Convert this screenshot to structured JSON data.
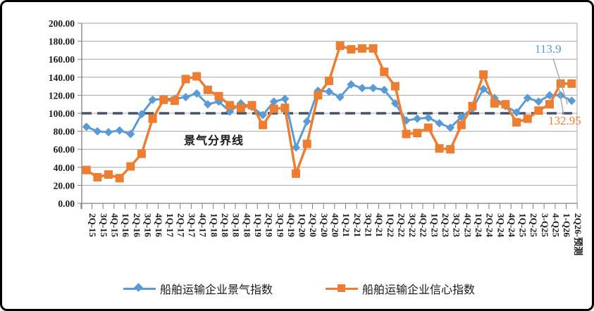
{
  "chart_data": {
    "type": "line",
    "title": "",
    "xlabel": "",
    "ylabel": "",
    "categories": [
      "2Q-15",
      "3Q-15",
      "4Q-15",
      "1Q-16",
      "2Q-16",
      "3Q-16",
      "4Q-16",
      "1Q-17",
      "2Q-17",
      "3Q-17",
      "4Q-17",
      "1Q-18",
      "2Q-18",
      "3Q-18",
      "4Q-18",
      "1Q-19",
      "2Q-19",
      "3Q-19",
      "4Q-19",
      "1Q-20",
      "2Q-20",
      "3Q-20",
      "4Q-20",
      "1Q-21",
      "2Q-21",
      "3Q-21",
      "4Q-21",
      "1Q-22",
      "2Q-22",
      "3Q-22",
      "4Q-22",
      "1Q-23",
      "2Q-23",
      "3Q-23",
      "4Q-23",
      "1Q-24",
      "2Q-24",
      "3Q-24",
      "4Q-24",
      "1Q-25",
      "2Q-25",
      "3-Q25",
      "4-Q25",
      "1-Q26",
      "2Q26-预测"
    ],
    "series": [
      {
        "name": "船舶运输企业景气指数",
        "marker": "diamond",
        "color": "#5B9BD5",
        "values": [
          85,
          80,
          79,
          81,
          77,
          99,
          115,
          116,
          116,
          118,
          122,
          110,
          113,
          102,
          111,
          107,
          98,
          113,
          116,
          62,
          91,
          125,
          124,
          118,
          132,
          128,
          128,
          126,
          111,
          92,
          94,
          95,
          89,
          84,
          96,
          105,
          127,
          117,
          108,
          101,
          117,
          113,
          120,
          120,
          113.9
        ]
      },
      {
        "name": "船舶运输企业信心指数",
        "marker": "square",
        "color": "#ED7D31",
        "values": [
          37,
          29,
          32,
          28,
          41,
          55,
          94,
          115,
          114,
          138,
          141,
          126,
          119,
          109,
          106,
          109,
          87,
          105,
          106,
          33,
          66,
          120,
          136,
          175,
          171,
          172,
          172,
          146,
          130,
          77,
          78,
          84,
          61,
          60,
          87,
          108,
          143,
          111,
          110,
          90,
          94,
          103,
          110,
          133,
          132.95
        ]
      }
    ],
    "reference_line": {
      "value": 100,
      "label": "景气分界线",
      "color": "#44546A",
      "style": "dashed"
    },
    "annotations": [
      {
        "text": "113.9",
        "series": "船舶运输企业景气指数",
        "color": "#5B9BD5"
      },
      {
        "text": "132.95",
        "series": "船舶运输企业信心指数",
        "color": "#ED7D31"
      }
    ],
    "y_axis": {
      "min": 0,
      "max": 200,
      "step": 20,
      "tick_labels": [
        "200.00",
        "180.00",
        "160.00",
        "140.00",
        "120.00",
        "100.00",
        "80.00",
        "60.00",
        "40.00",
        "20.00",
        "0.00"
      ]
    },
    "grid": true,
    "legend_position": "bottom",
    "colors": {
      "gridline": "#A6A6A6",
      "axis": "#808080",
      "leader_line": "#A6A6A6",
      "text": "#1a1a1a"
    }
  }
}
